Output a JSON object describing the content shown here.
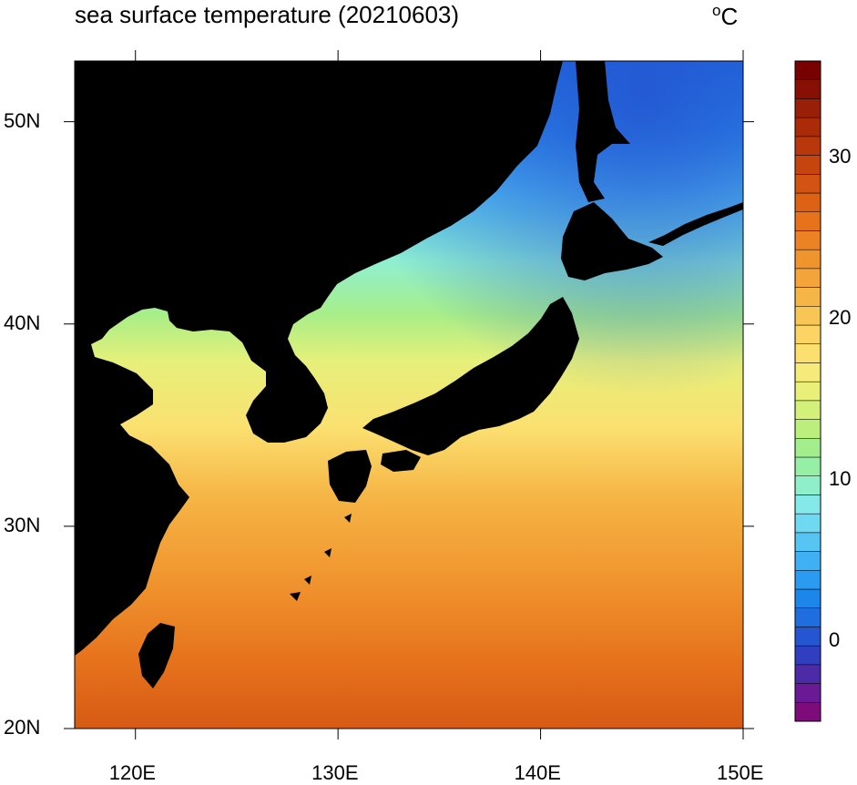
{
  "title": "sea surface temperature (20210603)",
  "unit": {
    "degree": "o",
    "letter": "C"
  },
  "map": {
    "lon_range": [
      117,
      150
    ],
    "lat_range": [
      20,
      53
    ],
    "lon_ticks": [
      "120E",
      "130E",
      "140E",
      "150E"
    ],
    "lat_ticks": [
      "20N",
      "30N",
      "40N",
      "50N"
    ],
    "land_color": "#000000"
  },
  "colorbar": {
    "range": [
      -5,
      36
    ],
    "labels": [
      "0",
      "10",
      "20",
      "30"
    ],
    "colors": [
      "#7d0c7a",
      "#6a1a95",
      "#4d2aa6",
      "#2f3fbf",
      "#2456d2",
      "#1f6ee0",
      "#1d86ea",
      "#2a9bf0",
      "#3fb0f3",
      "#56c5f4",
      "#6fd9f2",
      "#85e9ea",
      "#8eefca",
      "#95f0a6",
      "#a3ee8c",
      "#bbee7c",
      "#d3f07a",
      "#e8f07a",
      "#f6ea7a",
      "#fbe070",
      "#fbd463",
      "#f8c654",
      "#f6b646",
      "#f3a53a",
      "#f0942e",
      "#ec8224",
      "#e6721c",
      "#de6216",
      "#d35312",
      "#c6450e",
      "#b8380b",
      "#a92b08",
      "#991f06",
      "#880f04",
      "#770000"
    ]
  }
}
